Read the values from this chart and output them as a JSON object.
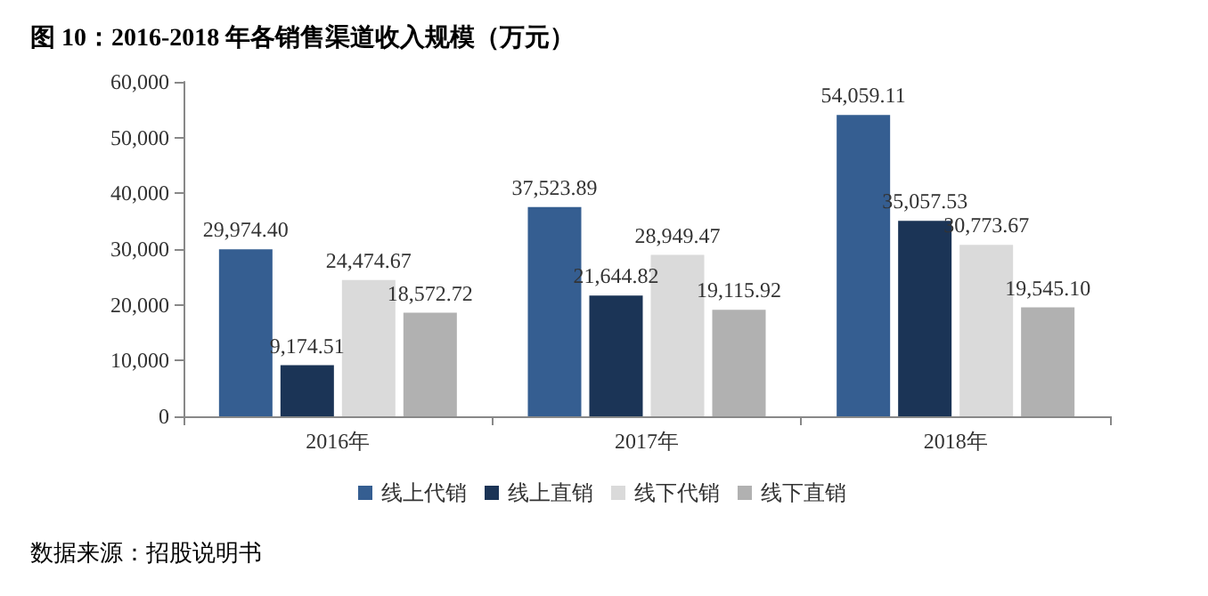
{
  "chart_data": {
    "type": "bar",
    "title": "图 10：2016-2018 年各销售渠道收入规模（万元）",
    "categories": [
      "2016年",
      "2017年",
      "2018年"
    ],
    "series": [
      {
        "name": "线上代销",
        "color": "#355e91",
        "values": [
          29974.4,
          37523.89,
          54059.11
        ],
        "value_labels": [
          "29,974.40",
          "37,523.89",
          "54,059.11"
        ]
      },
      {
        "name": "线上直销",
        "color": "#1b3456",
        "values": [
          9174.51,
          21644.82,
          35057.53
        ],
        "value_labels": [
          "9,174.51",
          "21,644.82",
          "35,057.53"
        ]
      },
      {
        "name": "线下代销",
        "color": "#dadada",
        "values": [
          24474.67,
          28949.47,
          30773.67
        ],
        "value_labels": [
          "24,474.67",
          "28,949.47",
          "30,773.67"
        ]
      },
      {
        "name": "线下直销",
        "color": "#b1b1b1",
        "values": [
          18572.72,
          19115.92,
          19545.1
        ],
        "value_labels": [
          "18,572.72",
          "19,115.92",
          "19,545.10"
        ]
      }
    ],
    "ylim": [
      0,
      60000
    ],
    "yticks": [
      {
        "value": 0,
        "label": "0"
      },
      {
        "value": 10000,
        "label": "10,000"
      },
      {
        "value": 20000,
        "label": "20,000"
      },
      {
        "value": 30000,
        "label": "30,000"
      },
      {
        "value": 40000,
        "label": "40,000"
      },
      {
        "value": 50000,
        "label": "50,000"
      },
      {
        "value": 60000,
        "label": "60,000"
      }
    ],
    "grid": false,
    "legend": "bottom",
    "annotations": [
      "数据来源：招股说明书"
    ]
  }
}
